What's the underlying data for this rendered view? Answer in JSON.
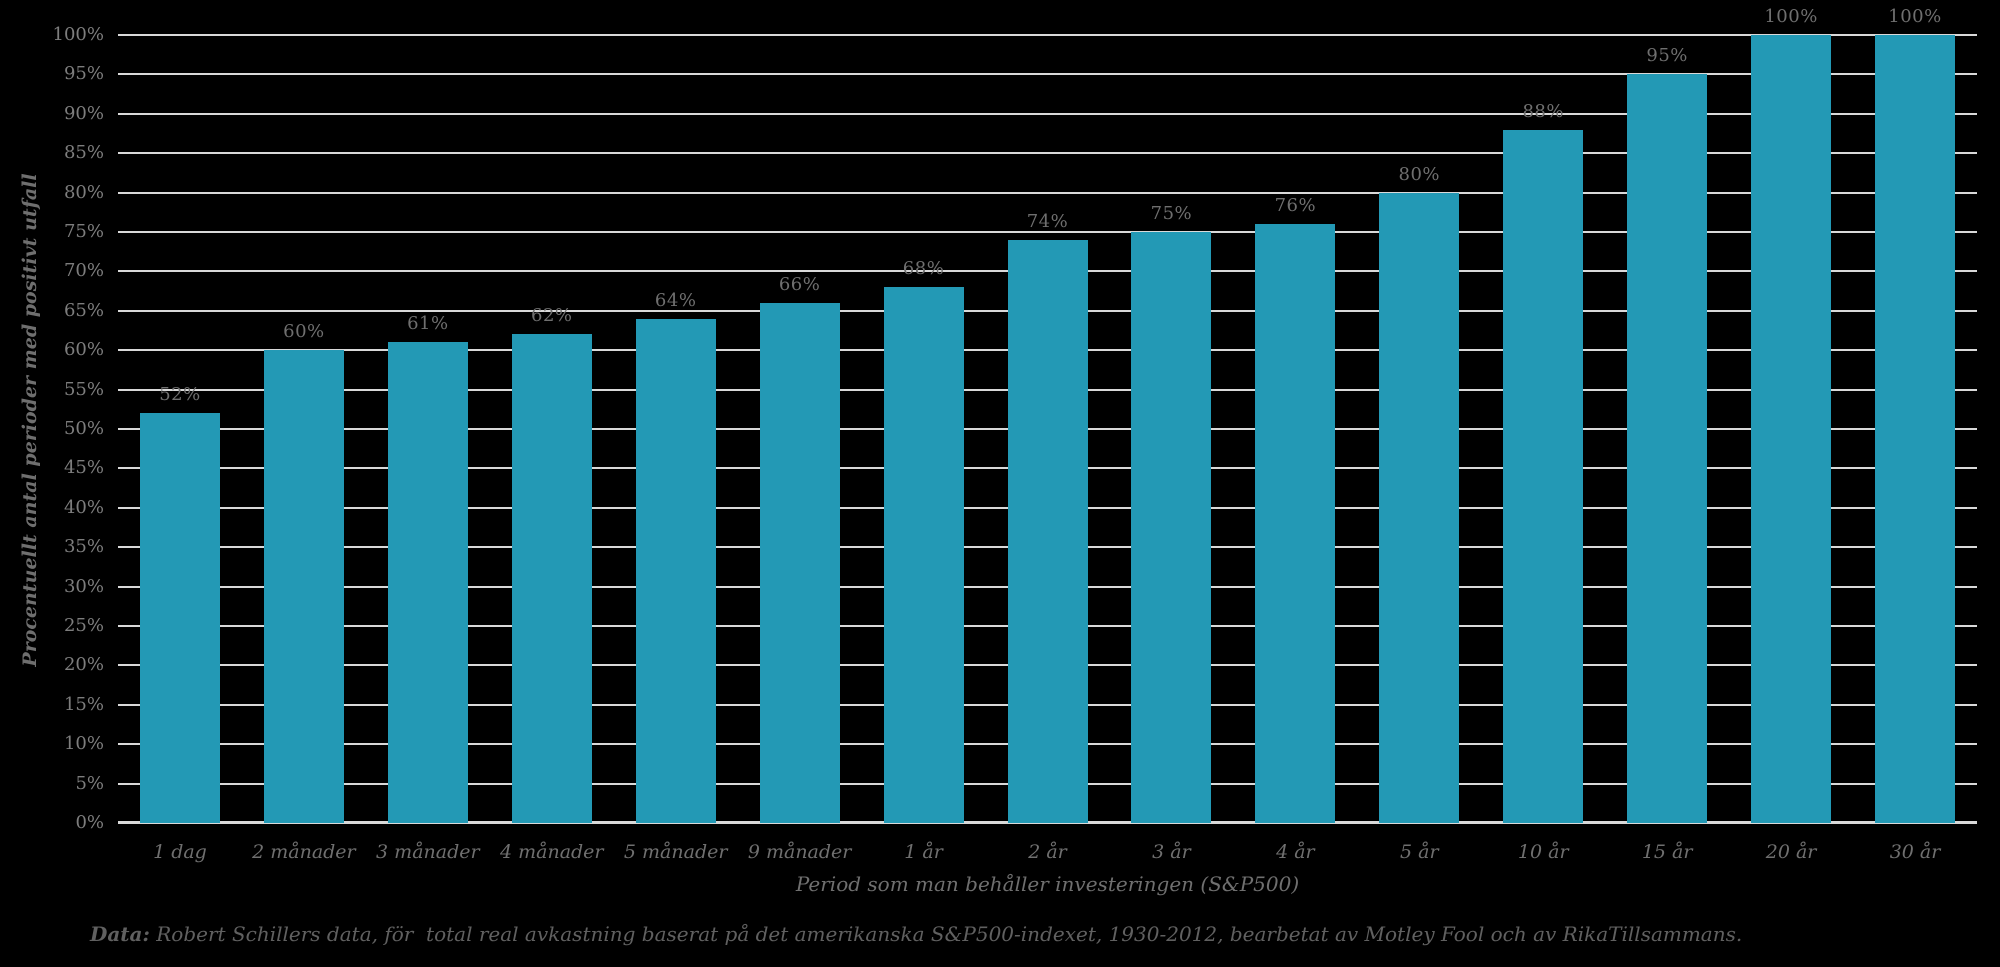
{
  "chart_data": {
    "type": "bar",
    "title": "",
    "categories": [
      "1 dag",
      "2 månader",
      "3 månader",
      "4 månader",
      "5 månader",
      "9 månader",
      "1 år",
      "2 år",
      "3 år",
      "4 år",
      "5 år",
      "10 år",
      "15 år",
      "20 år",
      "30 år"
    ],
    "values": [
      52,
      60,
      61,
      62,
      64,
      66,
      68,
      74,
      75,
      76,
      80,
      88,
      95,
      100,
      100
    ],
    "value_labels": [
      "52%",
      "60%",
      "61%",
      "62%",
      "64%",
      "66%",
      "68%",
      "74%",
      "75%",
      "76%",
      "80%",
      "88%",
      "95%",
      "100%",
      "100%"
    ],
    "xlabel": "Period som man behåller investeringen (S&P500)",
    "ylabel": "Procentuellt antal perioder med positivt utfall",
    "ylim": [
      0,
      100
    ],
    "ytick_step": 5,
    "ytick_labels": [
      "0%",
      "5%",
      "10%",
      "15%",
      "20%",
      "25%",
      "30%",
      "35%",
      "40%",
      "45%",
      "50%",
      "55%",
      "60%",
      "65%",
      "70%",
      "75%",
      "80%",
      "85%",
      "90%",
      "95%",
      "100%"
    ],
    "grid": true,
    "legend_position": "none",
    "colors": {
      "background": "#000000",
      "bar": "#2399b5",
      "gridline": "#d9d9d9",
      "axis_line": "#d9d9d9",
      "ytick_text": "#7d7d7d",
      "value_label_text": "#6f6f6f",
      "xtick_text": "#6f6f6f",
      "axis_title_text": "#6f6f6f",
      "caption_text": "#606060"
    }
  },
  "caption": {
    "label": "Data:",
    "text": " Robert Schillers data, för  total real avkastning baserat på det amerikanska S&P500-indexet, 1930-2012, bearbetat av Motley Fool och av RikaTillsammans."
  }
}
